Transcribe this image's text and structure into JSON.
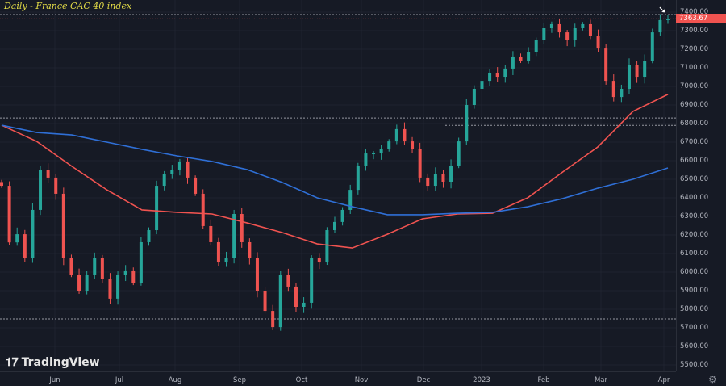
{
  "title": "Daily - France CAC 40 index",
  "logo_text": "TradingView",
  "last_price_label": "7363.67",
  "colors": {
    "background": "#161a25",
    "up": "#26a69a",
    "down": "#ef5350",
    "ma_red": "#f05350",
    "ma_blue": "#2f6fd6",
    "title": "#e3dc47",
    "grid": "#1f2330"
  },
  "chart_data": {
    "type": "candlestick",
    "title": "Daily - France CAC 40 index",
    "ylim": [
      5450,
      7430
    ],
    "y_ticks": [
      "7400.00",
      "7300.00",
      "7200.00",
      "7100.00",
      "7000.00",
      "6900.00",
      "6800.00",
      "6700.00",
      "6600.00",
      "6500.00",
      "6400.00",
      "6300.00",
      "6200.00",
      "6100.00",
      "6000.00",
      "5900.00",
      "5800.00",
      "5700.00",
      "5600.00",
      "5500.00"
    ],
    "x_ticks": [
      "Jun",
      "Jul",
      "Aug",
      "Sep",
      "Oct",
      "Nov",
      "Dec",
      "2023",
      "Feb",
      "Mar",
      "Apr"
    ],
    "grid": true,
    "closes": [
      6465,
      6160,
      6204,
      6074,
      6335,
      6552,
      6509,
      6422,
      6074,
      5987,
      5900,
      5987,
      6074,
      5965,
      5857,
      5987,
      6009,
      5943,
      6161,
      6226,
      6465,
      6530,
      6552,
      6596,
      6509,
      6422,
      6248,
      6161,
      6052,
      6074,
      6313,
      6161,
      6074,
      5900,
      5791,
      5704,
      5987,
      5922,
      5813,
      5835,
      6074,
      6052,
      6226,
      6270,
      6335,
      6443,
      6574,
      6639,
      6639,
      6661,
      6704,
      6770,
      6704,
      6661,
      6509,
      6465,
      6530,
      6487,
      6574,
      6704,
      6900,
      6987,
      7030,
      7074,
      7052,
      7096,
      7161,
      7139,
      7183,
      7248,
      7313,
      7335,
      7291,
      7248,
      7313,
      7335,
      7270,
      7204,
      7030,
      6943,
      6987,
      7117,
      7052,
      7139,
      7291,
      7357,
      7363.67
    ],
    "moving_averages": [
      {
        "color": "red",
        "values": [
          6791,
          6704,
          6570,
          6443,
          6335,
          6322,
          6313,
          6265,
          6213,
          6152,
          6130,
          6204,
          6287,
          6313,
          6317,
          6400,
          6539,
          6674,
          6865,
          6957
        ]
      },
      {
        "color": "blue",
        "values": [
          6791,
          6752,
          6739,
          6700,
          6661,
          6626,
          6596,
          6552,
          6483,
          6400,
          6352,
          6309,
          6309,
          6317,
          6322,
          6352,
          6396,
          6452,
          6500,
          6561
        ]
      }
    ],
    "horizontal_levels": [
      7387,
      6830,
      6790,
      5748
    ],
    "last_price": 7363.67
  }
}
